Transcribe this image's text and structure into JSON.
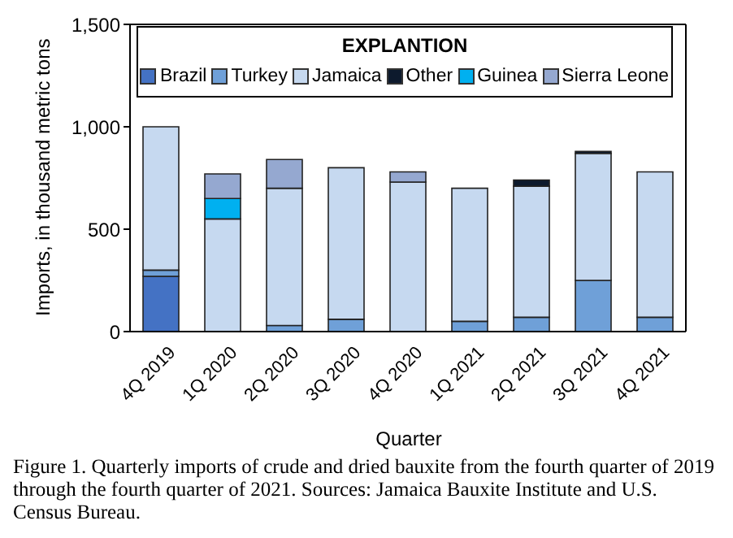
{
  "chart_data": {
    "type": "bar",
    "stacked": true,
    "ylabel": "Imports, in thousand metric tons",
    "xlabel": "Quarter",
    "legend_title": "EXPLANTION",
    "legend": "top",
    "categories": [
      "4Q 2019",
      "1Q 2020",
      "2Q 2020",
      "3Q 2020",
      "4Q 2020",
      "1Q 2021",
      "2Q 2021",
      "3Q 2021",
      "4Q 2021"
    ],
    "series": [
      {
        "name": "Brazil",
        "color": "#4472c4",
        "values": [
          270,
          0,
          0,
          0,
          0,
          0,
          0,
          0,
          0
        ]
      },
      {
        "name": "Turkey",
        "color": "#6fa0d8",
        "values": [
          30,
          0,
          30,
          60,
          0,
          50,
          70,
          250,
          70
        ]
      },
      {
        "name": "Jamaica",
        "color": "#c6d9f0",
        "values": [
          700,
          550,
          670,
          740,
          730,
          650,
          640,
          620,
          710
        ]
      },
      {
        "name": "Other",
        "color": "#0d1a2d",
        "values": [
          0,
          0,
          0,
          0,
          0,
          0,
          30,
          10,
          0
        ]
      },
      {
        "name": "Guinea",
        "color": "#00b0f0",
        "values": [
          0,
          100,
          0,
          0,
          0,
          0,
          0,
          0,
          0
        ]
      },
      {
        "name": "Sierra Leone",
        "color": "#95a8d0",
        "values": [
          0,
          120,
          140,
          0,
          50,
          0,
          0,
          0,
          0
        ]
      }
    ],
    "ylim": [
      0,
      1500
    ],
    "yticks": [
      {
        "value": 0,
        "label": "0"
      },
      {
        "value": 500,
        "label": "500"
      },
      {
        "value": 1000,
        "label": "1,000"
      },
      {
        "value": 1500,
        "label": "1,500"
      }
    ],
    "grid": false,
    "annotations": [
      "Figure 1. Quarterly imports of crude and dried bauxite from the fourth quarter of 2019 through the fourth quarter of 2021. Sources: Jamaica Bauxite Institute and U.S. Census Bureau."
    ]
  }
}
